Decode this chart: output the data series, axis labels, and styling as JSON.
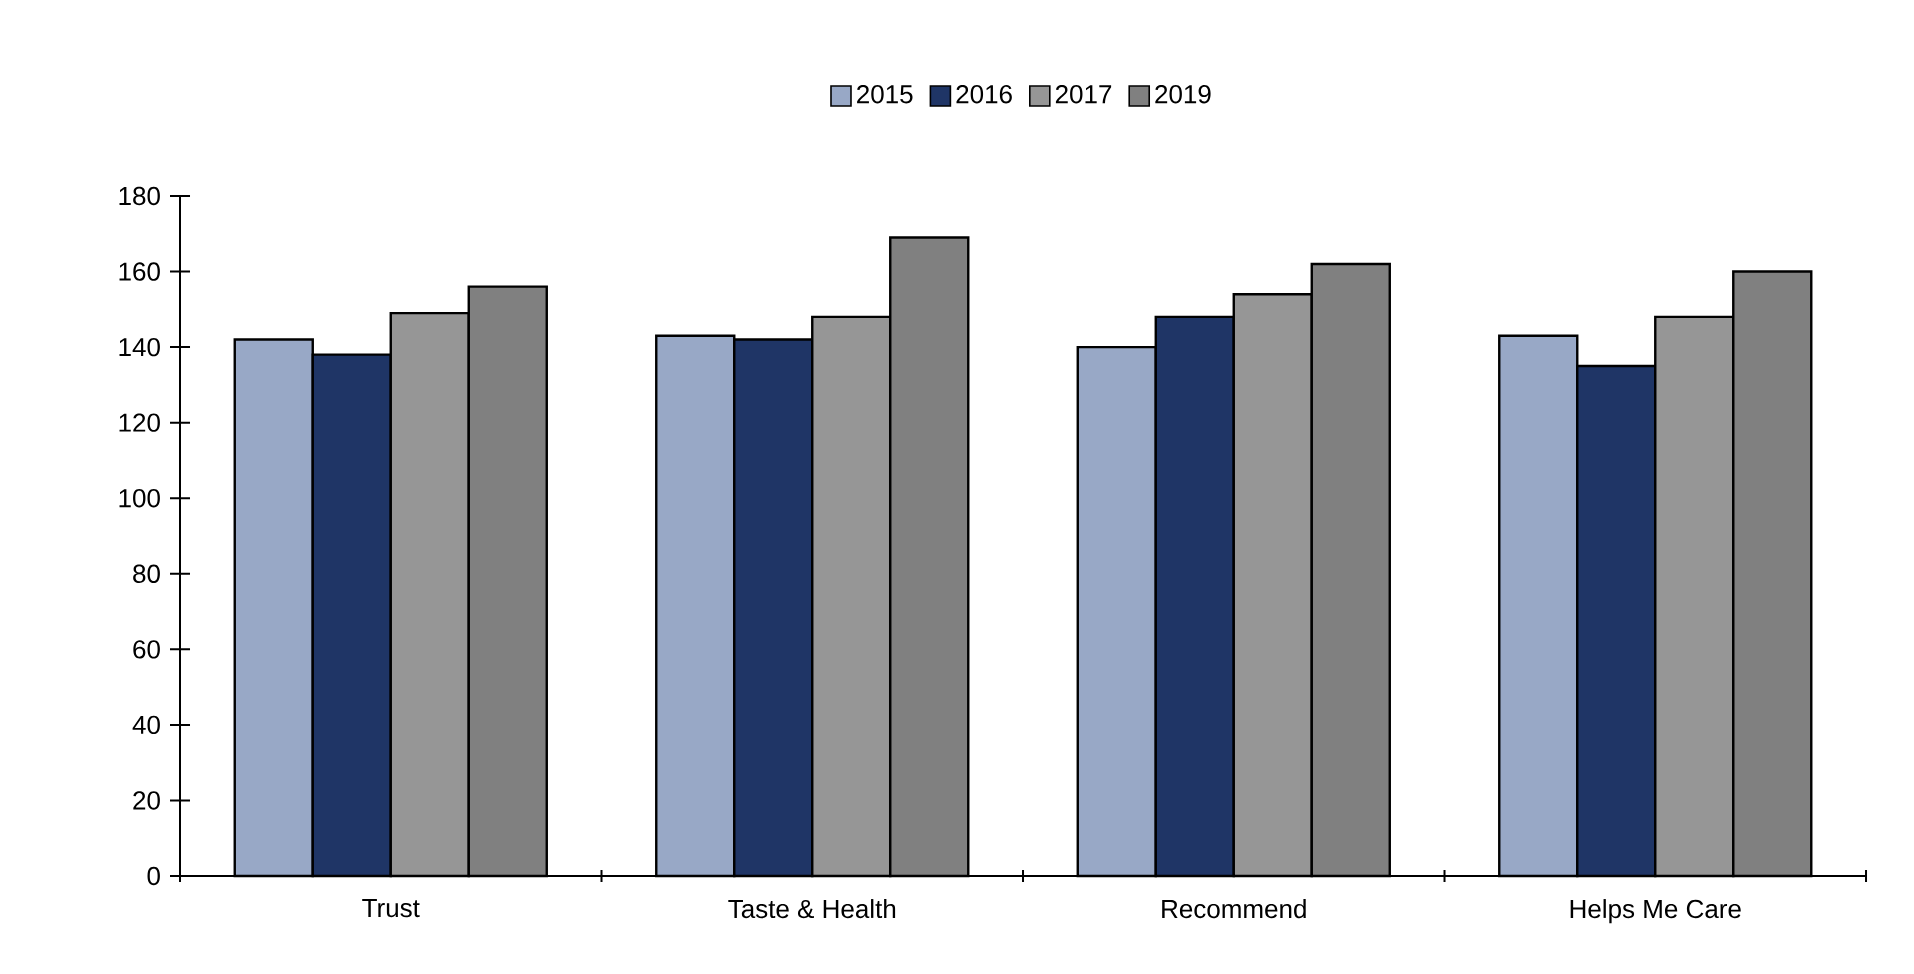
{
  "chart_data": {
    "type": "bar",
    "categories": [
      "Trust",
      "Taste & Health",
      "Recommend",
      "Helps Me Care"
    ],
    "series": [
      {
        "name": "2015",
        "color": "#98a8c6",
        "values": [
          142,
          143,
          140,
          143
        ]
      },
      {
        "name": "2016",
        "color": "#1f3566",
        "values": [
          138,
          142,
          148,
          135
        ]
      },
      {
        "name": "2017",
        "color": "#969696",
        "values": [
          149,
          148,
          154,
          148
        ]
      },
      {
        "name": "2019",
        "color": "#808080",
        "values": [
          156,
          169,
          162,
          160
        ]
      }
    ],
    "ylim": [
      0,
      180
    ],
    "yticks": [
      0,
      20,
      40,
      60,
      80,
      100,
      120,
      140,
      160,
      180
    ],
    "legend": "top",
    "grid": false
  }
}
